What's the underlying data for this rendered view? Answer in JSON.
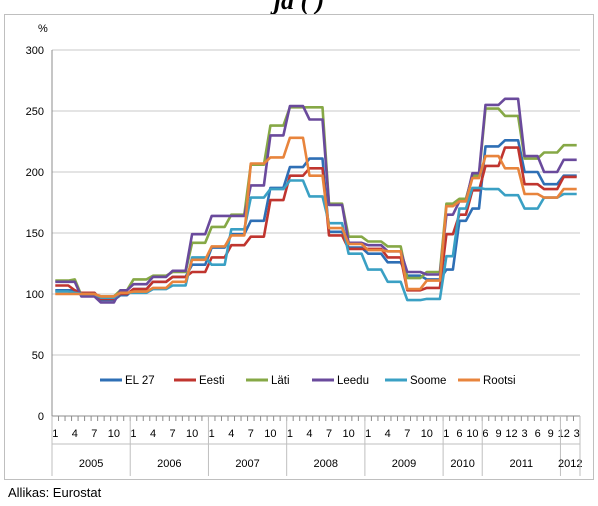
{
  "cut_title": "ja                    (                    )",
  "chart_data": {
    "type": "line",
    "ylabel": "%",
    "ylim": [
      0,
      300
    ],
    "yticks": [
      0,
      50,
      100,
      150,
      200,
      250,
      300
    ],
    "month_labels": [
      "1",
      "4",
      "7",
      "10",
      "1",
      "4",
      "7",
      "10",
      "1",
      "4",
      "7",
      "10",
      "1",
      "4",
      "7",
      "10",
      "1",
      "4",
      "7",
      "10",
      "1",
      "6",
      "10",
      "6",
      "9",
      "12",
      "3",
      "6",
      "9",
      "12",
      "3"
    ],
    "years": [
      {
        "label": "2005",
        "from": 0,
        "to": 12
      },
      {
        "label": "2006",
        "from": 12,
        "to": 24
      },
      {
        "label": "2007",
        "from": 24,
        "to": 36
      },
      {
        "label": "2008",
        "from": 36,
        "to": 48
      },
      {
        "label": "2009",
        "from": 48,
        "to": 60
      },
      {
        "label": "2010",
        "from": 60,
        "to": 66
      },
      {
        "label": "2011",
        "from": 66,
        "to": 78
      },
      {
        "label": "2012",
        "from": 78,
        "to": 81
      }
    ],
    "month_label_positions": [
      0,
      3,
      6,
      9,
      12,
      15,
      18,
      21,
      24,
      27,
      30,
      33,
      36,
      39,
      42,
      45,
      48,
      51,
      54,
      57,
      60,
      62,
      64,
      66,
      68,
      70,
      72,
      74,
      76,
      78,
      80
    ],
    "n_points": 81,
    "legend_position": "bottom-inside",
    "grid": true,
    "series": [
      {
        "name": "EL 27",
        "color": "#2e6fb5",
        "values": [
          103,
          103,
          103,
          103,
          101,
          101,
          101,
          95,
          95,
          95,
          99,
          99,
          104,
          104,
          104,
          110,
          110,
          110,
          114,
          114,
          114,
          124,
          124,
          124,
          138,
          138,
          138,
          149,
          149,
          149,
          160,
          160,
          160,
          187,
          187,
          187,
          204,
          204,
          204,
          211,
          211,
          211,
          151,
          151,
          151,
          138,
          138,
          138,
          133,
          133,
          133,
          126,
          126,
          126,
          115,
          115,
          115,
          112,
          112,
          112,
          120,
          120,
          160,
          160,
          170,
          170,
          221,
          221,
          221,
          226,
          226,
          226,
          200,
          200,
          200,
          190,
          190,
          190,
          197,
          197,
          197
        ]
      },
      {
        "name": "Eesti",
        "color": "#c0352f",
        "values": [
          107,
          107,
          107,
          103,
          101,
          101,
          101,
          96,
          96,
          96,
          100,
          100,
          104,
          104,
          104,
          110,
          110,
          110,
          114,
          114,
          114,
          118,
          118,
          118,
          130,
          130,
          130,
          140,
          140,
          140,
          147,
          147,
          147,
          177,
          177,
          177,
          197,
          197,
          197,
          203,
          203,
          203,
          148,
          148,
          148,
          137,
          137,
          137,
          137,
          137,
          137,
          130,
          130,
          130,
          103,
          103,
          103,
          105,
          105,
          105,
          149,
          149,
          165,
          165,
          185,
          185,
          205,
          205,
          205,
          220,
          220,
          220,
          190,
          190,
          190,
          186,
          186,
          186,
          196,
          196,
          196
        ]
      },
      {
        "name": "Läti",
        "color": "#86a846",
        "values": [
          111,
          111,
          111,
          112,
          99,
          99,
          99,
          98,
          98,
          98,
          103,
          103,
          112,
          112,
          112,
          115,
          115,
          115,
          118,
          118,
          118,
          142,
          142,
          142,
          155,
          155,
          155,
          165,
          165,
          165,
          206,
          206,
          206,
          238,
          238,
          238,
          253,
          253,
          253,
          253,
          253,
          253,
          174,
          174,
          174,
          147,
          147,
          147,
          143,
          143,
          143,
          139,
          139,
          139,
          113,
          113,
          113,
          118,
          118,
          118,
          174,
          174,
          178,
          178,
          197,
          197,
          252,
          252,
          252,
          246,
          246,
          246,
          211,
          211,
          211,
          216,
          216,
          216,
          222,
          222,
          222
        ]
      },
      {
        "name": "Leedu",
        "color": "#6a4a9c",
        "values": [
          110,
          110,
          110,
          110,
          98,
          98,
          98,
          93,
          93,
          93,
          103,
          103,
          108,
          108,
          108,
          114,
          114,
          114,
          119,
          119,
          119,
          149,
          149,
          149,
          164,
          164,
          164,
          164,
          164,
          164,
          189,
          189,
          189,
          230,
          230,
          230,
          254,
          254,
          254,
          243,
          243,
          243,
          173,
          173,
          173,
          142,
          142,
          142,
          140,
          140,
          140,
          135,
          135,
          135,
          118,
          118,
          118,
          116,
          116,
          116,
          165,
          165,
          176,
          176,
          199,
          199,
          255,
          255,
          255,
          260,
          260,
          260,
          213,
          213,
          213,
          200,
          200,
          200,
          210,
          210,
          210
        ]
      },
      {
        "name": "Soome",
        "color": "#3aa0c4",
        "values": [
          102,
          102,
          102,
          101,
          100,
          100,
          100,
          97,
          97,
          97,
          101,
          101,
          101,
          101,
          101,
          104,
          104,
          104,
          107,
          107,
          107,
          130,
          130,
          130,
          124,
          124,
          124,
          153,
          153,
          153,
          179,
          179,
          179,
          186,
          186,
          186,
          193,
          193,
          193,
          180,
          180,
          180,
          158,
          158,
          158,
          133,
          133,
          133,
          120,
          120,
          120,
          110,
          110,
          110,
          95,
          95,
          95,
          96,
          96,
          96,
          131,
          131,
          170,
          170,
          187,
          187,
          186,
          186,
          186,
          181,
          181,
          181,
          170,
          170,
          170,
          179,
          179,
          179,
          182,
          182,
          182
        ]
      },
      {
        "name": "Rootsi",
        "color": "#e8843c",
        "values": [
          100,
          100,
          100,
          100,
          100,
          100,
          100,
          98,
          98,
          98,
          101,
          101,
          102,
          102,
          102,
          105,
          105,
          105,
          110,
          110,
          110,
          128,
          128,
          128,
          139,
          139,
          139,
          148,
          148,
          148,
          207,
          207,
          207,
          212,
          212,
          212,
          228,
          228,
          228,
          197,
          197,
          197,
          154,
          154,
          154,
          141,
          141,
          141,
          136,
          136,
          136,
          135,
          135,
          135,
          104,
          104,
          104,
          111,
          111,
          111,
          172,
          172,
          176,
          176,
          195,
          195,
          213,
          213,
          213,
          203,
          203,
          203,
          182,
          182,
          182,
          179,
          179,
          179,
          186,
          186,
          186
        ]
      }
    ]
  },
  "source": "Allikas: Eurostat"
}
